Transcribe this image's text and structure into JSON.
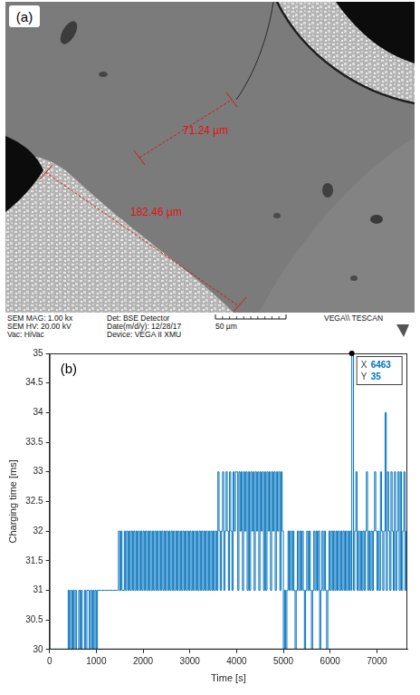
{
  "image_panel": {
    "label": "(a)",
    "measurements": [
      "71.24 µm",
      "182.46 µm"
    ],
    "footer": {
      "rows": [
        [
          "SEM MAG: 1.00 kx",
          "Det: BSE Detector",
          "VEGA\\\\ TESCAN"
        ],
        [
          "SEM HV: 20.00 kV",
          "Date(m/d/y): 12/28/17"
        ],
        [
          "Vac: HiVac",
          "Device: VEGA II XMU"
        ]
      ],
      "scale_bar": "50 µm"
    }
  },
  "chart_data": {
    "type": "line",
    "panel_label": "(b)",
    "x_label": "Time [s]",
    "y_label": "Charging time [ms]",
    "color": "#0072bd",
    "line_style": "steps",
    "grid": false,
    "xlim": [
      0,
      7650
    ],
    "xticks": [
      0,
      1000,
      2000,
      3000,
      4000,
      5000,
      6000,
      7000
    ],
    "ylim": [
      30,
      35
    ],
    "yticks": [
      30,
      30.5,
      31,
      31.5,
      32,
      32.5,
      33,
      33.5,
      34,
      34.5,
      35
    ],
    "datatip": {
      "x": 6463,
      "y": 35,
      "x_label": "X",
      "y_label": "Y"
    },
    "x": [
      0,
      25,
      50,
      75,
      100,
      125,
      150,
      175,
      200,
      225,
      250,
      275,
      300,
      325,
      350,
      375,
      400,
      425,
      450,
      475,
      500,
      525,
      550,
      575,
      600,
      625,
      650,
      675,
      700,
      725,
      750,
      775,
      800,
      825,
      850,
      875,
      900,
      925,
      950,
      975,
      1000,
      1025,
      1050,
      1075,
      1100,
      1125,
      1150,
      1175,
      1200,
      1225,
      1250,
      1275,
      1300,
      1325,
      1350,
      1375,
      1400,
      1425,
      1450,
      1475,
      1500,
      1525,
      1550,
      1575,
      1600,
      1625,
      1650,
      1675,
      1700,
      1725,
      1750,
      1775,
      1800,
      1825,
      1850,
      1875,
      1900,
      1925,
      1950,
      1975,
      2000,
      2025,
      2050,
      2075,
      2100,
      2125,
      2150,
      2175,
      2200,
      2225,
      2250,
      2275,
      2300,
      2325,
      2350,
      2375,
      2400,
      2425,
      2450,
      2475,
      2500,
      2525,
      2550,
      2575,
      2600,
      2625,
      2650,
      2675,
      2700,
      2725,
      2750,
      2775,
      2800,
      2825,
      2850,
      2875,
      2900,
      2925,
      2950,
      2975,
      3000,
      3025,
      3050,
      3075,
      3100,
      3125,
      3150,
      3175,
      3200,
      3225,
      3250,
      3275,
      3300,
      3325,
      3350,
      3375,
      3400,
      3425,
      3450,
      3475,
      3500,
      3525,
      3550,
      3575,
      3600,
      3625,
      3650,
      3675,
      3700,
      3725,
      3750,
      3775,
      3800,
      3825,
      3850,
      3875,
      3900,
      3925,
      3950,
      3975,
      4000,
      4025,
      4050,
      4075,
      4100,
      4125,
      4150,
      4175,
      4200,
      4225,
      4250,
      4275,
      4300,
      4325,
      4350,
      4375,
      4400,
      4425,
      4450,
      4475,
      4500,
      4525,
      4550,
      4575,
      4600,
      4625,
      4650,
      4675,
      4700,
      4725,
      4750,
      4775,
      4800,
      4825,
      4850,
      4875,
      4900,
      4925,
      4950,
      4975,
      5000,
      5025,
      5050,
      5075,
      5100,
      5125,
      5150,
      5175,
      5200,
      5225,
      5250,
      5275,
      5300,
      5325,
      5350,
      5375,
      5400,
      5425,
      5450,
      5475,
      5500,
      5525,
      5550,
      5575,
      5600,
      5625,
      5650,
      5675,
      5700,
      5725,
      5750,
      5775,
      5800,
      5825,
      5850,
      5875,
      5900,
      5925,
      5950,
      5975,
      6000,
      6025,
      6050,
      6075,
      6100,
      6125,
      6150,
      6175,
      6200,
      6225,
      6250,
      6275,
      6300,
      6325,
      6350,
      6375,
      6400,
      6425,
      6450,
      6463,
      6500,
      6525,
      6550,
      6575,
      6600,
      6625,
      6650,
      6675,
      6700,
      6725,
      6750,
      6775,
      6800,
      6825,
      6850,
      6875,
      6900,
      6925,
      6950,
      6975,
      7000,
      7025,
      7050,
      7075,
      7100,
      7125,
      7150,
      7175,
      7200,
      7225,
      7250,
      7275,
      7300,
      7325,
      7350,
      7375,
      7400,
      7425,
      7450,
      7475,
      7500,
      7525,
      7550,
      7575,
      7600,
      7625,
      7650
    ],
    "values": [
      30,
      30,
      30,
      30,
      30,
      30,
      30,
      30,
      30,
      30,
      30,
      30,
      30,
      30,
      30,
      30,
      31,
      30,
      31,
      30,
      31,
      30,
      31,
      30,
      30,
      31,
      30,
      31,
      30,
      30,
      31,
      30,
      31,
      31,
      30,
      31,
      30,
      31,
      30,
      31,
      30,
      31,
      31,
      31,
      31,
      31,
      31,
      31,
      31,
      31,
      31,
      31,
      31,
      31,
      31,
      31,
      31,
      31,
      31,
      32,
      31,
      32,
      31,
      31,
      32,
      31,
      32,
      31,
      32,
      31,
      32,
      31,
      32,
      31,
      32,
      31,
      32,
      31,
      32,
      31,
      32,
      31,
      32,
      31,
      32,
      31,
      32,
      31,
      32,
      31,
      32,
      31,
      32,
      31,
      32,
      31,
      32,
      31,
      32,
      31,
      32,
      31,
      32,
      31,
      32,
      31,
      32,
      31,
      32,
      31,
      32,
      31,
      32,
      31,
      32,
      31,
      32,
      31,
      32,
      31,
      32,
      31,
      32,
      31,
      32,
      31,
      32,
      31,
      32,
      31,
      32,
      31,
      32,
      31,
      32,
      31,
      32,
      31,
      32,
      31,
      32,
      31,
      32,
      31,
      33,
      32,
      31,
      32,
      33,
      31,
      32,
      33,
      32,
      31,
      33,
      32,
      31,
      33,
      32,
      33,
      33,
      31,
      33,
      32,
      33,
      31,
      33,
      32,
      33,
      31,
      33,
      31,
      33,
      32,
      33,
      31,
      33,
      32,
      33,
      31,
      33,
      32,
      33,
      31,
      33,
      31,
      33,
      32,
      33,
      31,
      33,
      32,
      33,
      31,
      33,
      32,
      33,
      31,
      33,
      32,
      30,
      31,
      30,
      31,
      32,
      31,
      32,
      31,
      32,
      31,
      30,
      31,
      32,
      31,
      32,
      31,
      32,
      31,
      30,
      31,
      32,
      31,
      32,
      31,
      30,
      31,
      32,
      31,
      32,
      31,
      32,
      30,
      31,
      32,
      31,
      32,
      31,
      30,
      31,
      32,
      31,
      32,
      31,
      32,
      31,
      32,
      31,
      32,
      31,
      32,
      31,
      32,
      31,
      32,
      31,
      32,
      31,
      32,
      31,
      35,
      31,
      32,
      33,
      31,
      32,
      31,
      32,
      31,
      32,
      31,
      32,
      33,
      31,
      32,
      31,
      32,
      31,
      32,
      33,
      32,
      31,
      32,
      31,
      33,
      32,
      31,
      32,
      34,
      31,
      33,
      32,
      31,
      33,
      32,
      31,
      33,
      31,
      32,
      33,
      31,
      33,
      31,
      32,
      33,
      31,
      32,
      33
    ]
  }
}
